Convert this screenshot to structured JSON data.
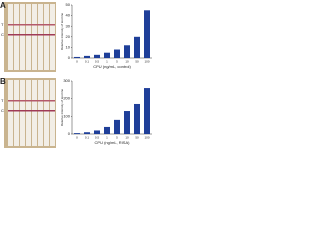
{
  "chart_data": [
    {
      "type": "bar",
      "panel_label": "A",
      "strip_labels": [
        "T",
        "C"
      ],
      "xlabel": "CPU (ng/mL, control)",
      "ylabel": "Relative intensity of test line",
      "categories": [
        "0",
        "0.1",
        "0.5",
        "1",
        "5",
        "10",
        "50",
        "100"
      ],
      "values": [
        1,
        2,
        3,
        5,
        8,
        12,
        20,
        45
      ],
      "color": "#1f3f99",
      "ylim": [
        0,
        50
      ],
      "yticks": [
        0,
        10,
        20,
        30,
        40,
        50
      ],
      "grid": false
    },
    {
      "type": "bar",
      "panel_label": "B",
      "strip_labels": [
        "T",
        "C"
      ],
      "xlabel": "CPU (ng/mL, RISA)",
      "ylabel": "Relative intensity of test line",
      "categories": [
        "0",
        "0.1",
        "0.5",
        "1",
        "5",
        "10",
        "50",
        "100"
      ],
      "values": [
        5,
        10,
        20,
        40,
        80,
        130,
        170,
        260
      ],
      "color": "#1f3f99",
      "ylim": [
        0,
        300
      ],
      "yticks": [
        0,
        100,
        200,
        300
      ],
      "grid": false
    }
  ]
}
